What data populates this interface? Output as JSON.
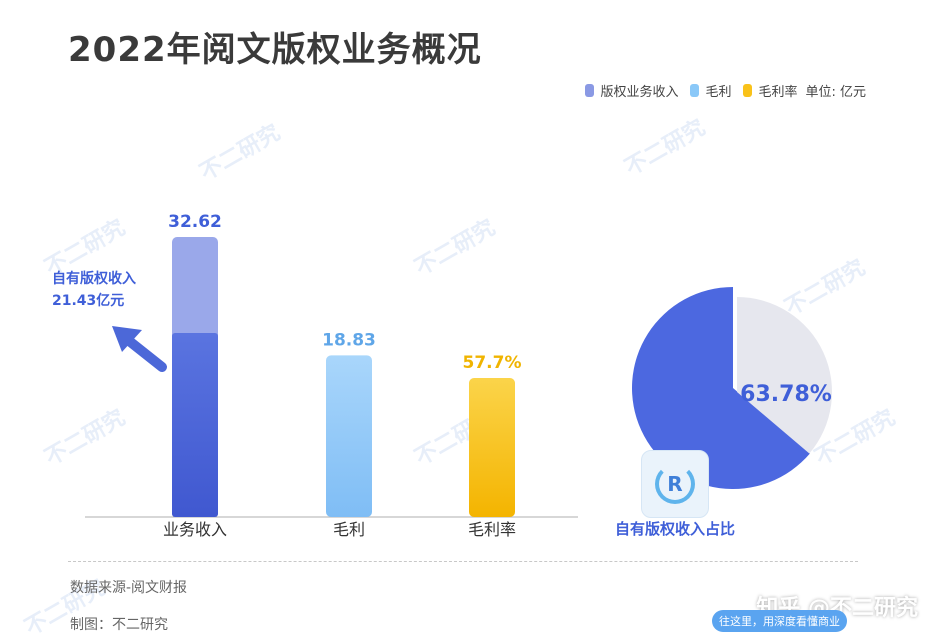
{
  "title": "2022年阅文版权业务概况",
  "legend": {
    "items": [
      {
        "label": "版权业务收入",
        "color": "#8a99e4"
      },
      {
        "label": "毛利",
        "color": "#8ac8f8"
      },
      {
        "label": "毛利率",
        "color": "#f9c21a"
      }
    ],
    "unit": "单位: 亿元"
  },
  "annotation": {
    "line1": "自有版权收入",
    "line2": "21.43亿元"
  },
  "chart_data": [
    {
      "type": "bar",
      "categories": [
        "业务收入",
        "毛利",
        "毛利率"
      ],
      "series": [
        {
          "name": "版权业务收入",
          "values": [
            32.62,
            null,
            null
          ]
        },
        {
          "name": "毛利",
          "values": [
            null,
            18.83,
            null
          ]
        },
        {
          "name": "毛利率",
          "values": [
            null,
            null,
            57.7
          ]
        }
      ],
      "sub_values": {
        "自有版权收入": 21.43
      },
      "data_labels": [
        "32.62",
        "18.83",
        "57.7%"
      ],
      "colors": {
        "revenue_top": "#9aa8ea",
        "revenue_bottom": "#4c68d8",
        "gross_profit": "#8ec8f8",
        "gross_margin": "#f9c21a",
        "label_revenue": "#3f5fd8",
        "label_profit": "#5fa6e8",
        "label_margin": "#f0b400"
      }
    },
    {
      "type": "pie",
      "slices": [
        {
          "label": "自有版权收入占比",
          "value": 63.78,
          "color": "#4c68e0"
        },
        {
          "label": "",
          "value": 36.22,
          "color": "#e6e7ee"
        }
      ],
      "data_label": "63.78%"
    }
  ],
  "pie_caption": "自有版权收入占比",
  "footer": {
    "source": "数据来源-阅文财报",
    "author": "制图：不二研究"
  },
  "watermark_text": "不二研究",
  "credit": "知乎 @不二研究",
  "banner": "往这里，用深度看懂商业"
}
